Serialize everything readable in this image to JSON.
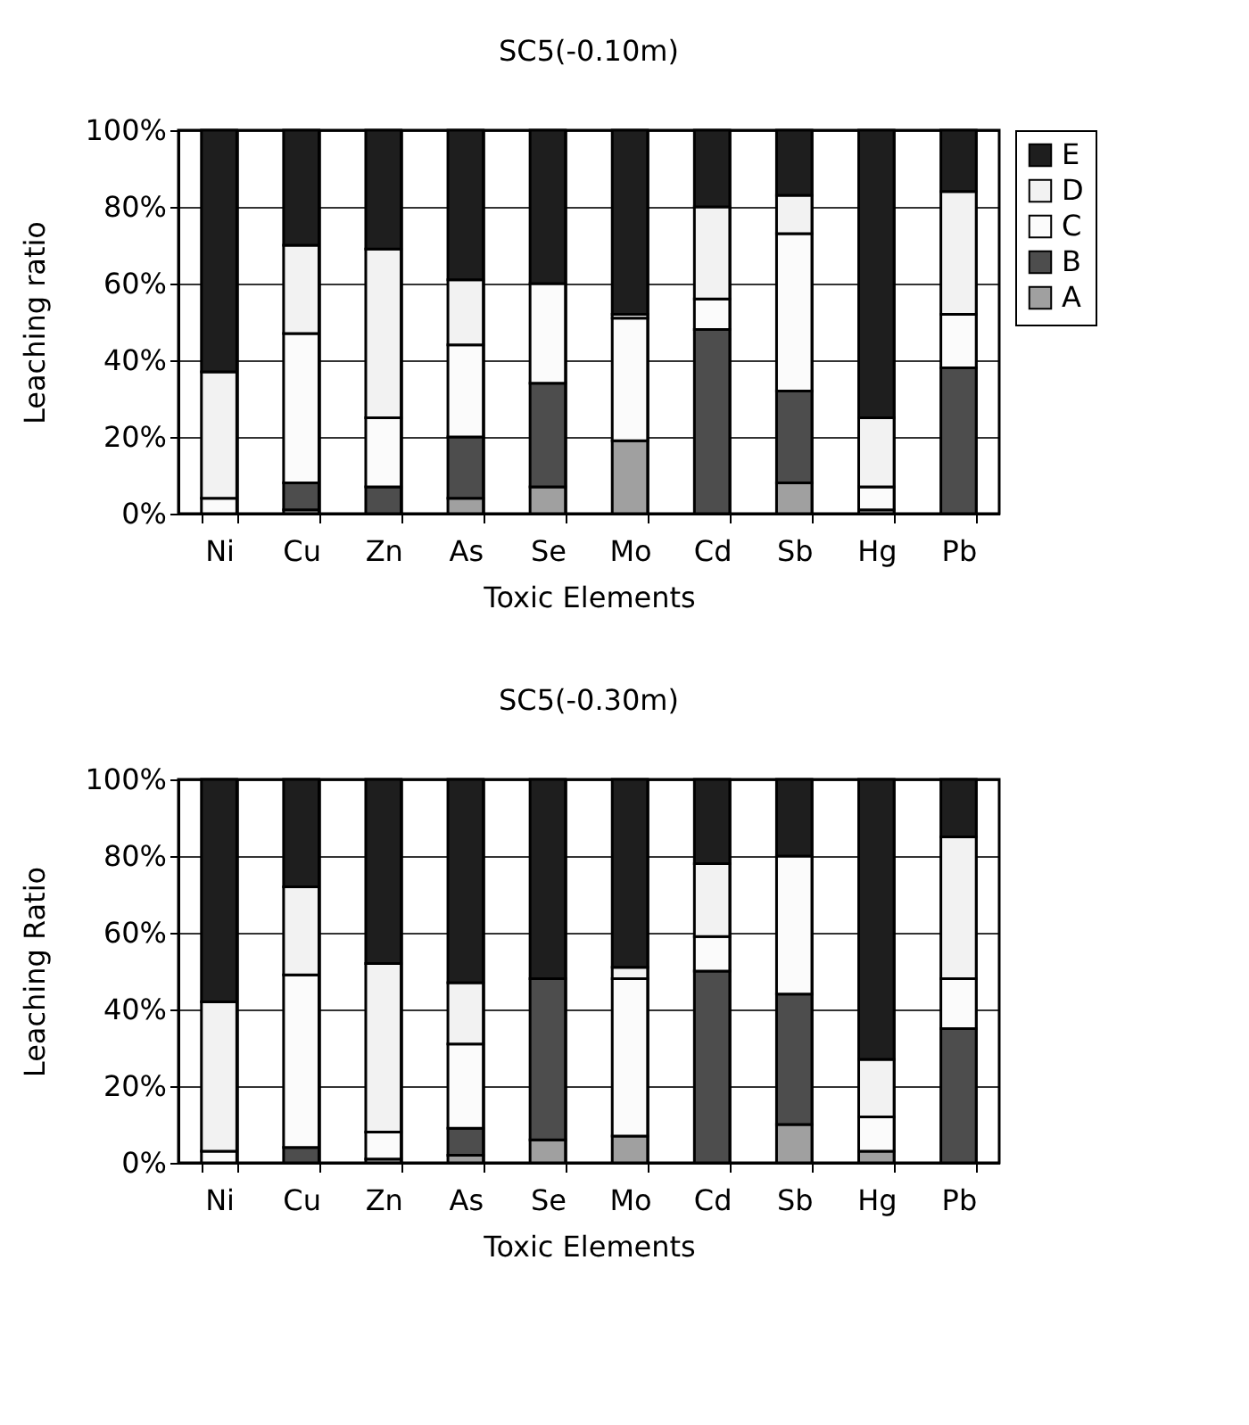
{
  "chart_data": [
    {
      "type": "bar",
      "title": "SC5(-0.10m)",
      "xlabel": "Toxic Elements",
      "ylabel": "Leaching ratio",
      "stacked": true,
      "grid": true,
      "legend": "right",
      "categories": [
        "Ni",
        "Cu",
        "Zn",
        "As",
        "Se",
        "Mo",
        "Cd",
        "Sb",
        "Hg",
        "Pb"
      ],
      "ylim": [
        0,
        100
      ],
      "yticks": [
        {
          "value": 0,
          "label": "0%"
        },
        {
          "value": 20,
          "label": "20%"
        },
        {
          "value": 40,
          "label": "40%"
        },
        {
          "value": 60,
          "label": "60%"
        },
        {
          "value": 80,
          "label": "80%"
        },
        {
          "value": 100,
          "label": "100%"
        }
      ],
      "series": [
        {
          "name": "A",
          "color": "#a0a0a0",
          "values": [
            0,
            1,
            0,
            4,
            7,
            19,
            0,
            8,
            1,
            0
          ]
        },
        {
          "name": "B",
          "color": "#4d4d4d",
          "values": [
            0,
            7,
            7,
            16,
            27,
            0,
            48,
            24,
            0,
            38
          ]
        },
        {
          "name": "C",
          "color": "#fbfbfb",
          "values": [
            4,
            39,
            18,
            24,
            26,
            32,
            8,
            41,
            6,
            14
          ]
        },
        {
          "name": "D",
          "color": "#f2f2f2",
          "values": [
            33,
            23,
            44,
            17,
            0,
            1,
            24,
            10,
            18,
            32
          ]
        },
        {
          "name": "E",
          "color": "#1e1e1e",
          "values": [
            63,
            30,
            31,
            39,
            40,
            48,
            20,
            17,
            75,
            16
          ]
        }
      ]
    },
    {
      "type": "bar",
      "title": "SC5(-0.30m)",
      "xlabel": "Toxic Elements",
      "ylabel": "Leaching Ratio",
      "stacked": true,
      "grid": true,
      "legend": "right",
      "categories": [
        "Ni",
        "Cu",
        "Zn",
        "As",
        "Se",
        "Mo",
        "Cd",
        "Sb",
        "Hg",
        "Pb"
      ],
      "ylim": [
        0,
        100
      ],
      "yticks": [
        {
          "value": 0,
          "label": "0%"
        },
        {
          "value": 20,
          "label": "20%"
        },
        {
          "value": 40,
          "label": "40%"
        },
        {
          "value": 60,
          "label": "60%"
        },
        {
          "value": 80,
          "label": "80%"
        },
        {
          "value": 100,
          "label": "100%"
        }
      ],
      "series": [
        {
          "name": "A",
          "color": "#a0a0a0",
          "values": [
            0,
            0,
            1,
            2,
            6,
            7,
            0,
            10,
            3,
            0
          ]
        },
        {
          "name": "B",
          "color": "#4d4d4d",
          "values": [
            0,
            4,
            0,
            7,
            42,
            0,
            50,
            34,
            0,
            35
          ]
        },
        {
          "name": "C",
          "color": "#fbfbfb",
          "values": [
            3,
            45,
            7,
            22,
            0,
            41,
            9,
            36,
            9,
            13
          ]
        },
        {
          "name": "D",
          "color": "#f2f2f2",
          "values": [
            39,
            23,
            44,
            16,
            0,
            3,
            19,
            0,
            15,
            37
          ]
        },
        {
          "name": "E",
          "color": "#1e1e1e",
          "values": [
            58,
            28,
            48,
            53,
            52,
            49,
            22,
            20,
            73,
            15
          ]
        }
      ]
    }
  ]
}
